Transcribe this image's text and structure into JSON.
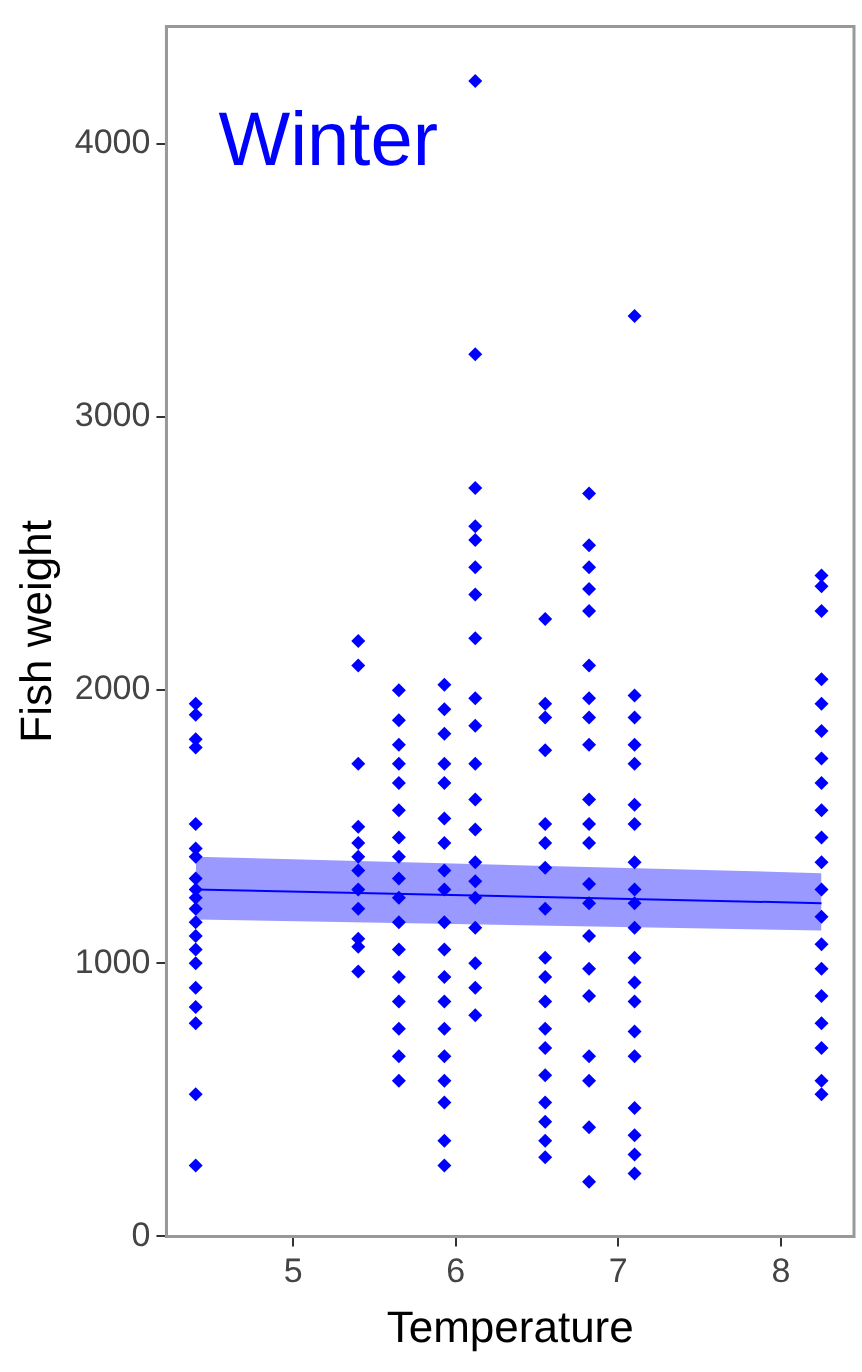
{
  "chart_data": {
    "type": "scatter",
    "xlabel": "Temperature",
    "ylabel": "Fish weight",
    "annotations": [
      "Winter"
    ],
    "xlim": [
      4.22,
      8.45
    ],
    "xticks": [
      5,
      6,
      7,
      8
    ],
    "ylim": [
      0,
      4430
    ],
    "yticks": [
      0,
      1000,
      2000,
      3000,
      4000
    ],
    "grid": false,
    "legend": false,
    "marker": "diamond",
    "series": [
      {
        "color": "#0000ff",
        "x": [
          4.4,
          4.4,
          4.4,
          4.4,
          4.4,
          4.4,
          4.4,
          4.4,
          4.4,
          4.4,
          4.4,
          4.4,
          4.4,
          4.4,
          4.4,
          4.4,
          4.4,
          4.4,
          4.4,
          4.4,
          5.4,
          5.4,
          5.4,
          5.4,
          5.4,
          5.4,
          5.4,
          5.4,
          5.4,
          5.4,
          5.4,
          5.4,
          5.65,
          5.65,
          5.65,
          5.65,
          5.65,
          5.65,
          5.65,
          5.65,
          5.65,
          5.65,
          5.65,
          5.65,
          5.65,
          5.65,
          5.65,
          5.65,
          5.65,
          5.93,
          5.93,
          5.93,
          5.93,
          5.93,
          5.93,
          5.93,
          5.93,
          5.93,
          5.93,
          5.93,
          5.93,
          5.93,
          5.93,
          5.93,
          5.93,
          5.93,
          5.93,
          5.93,
          6.12,
          6.12,
          6.12,
          6.12,
          6.12,
          6.12,
          6.12,
          6.12,
          6.12,
          6.12,
          6.12,
          6.12,
          6.12,
          6.12,
          6.12,
          6.12,
          6.12,
          6.12,
          6.12,
          6.12,
          6.55,
          6.55,
          6.55,
          6.55,
          6.55,
          6.55,
          6.55,
          6.55,
          6.55,
          6.55,
          6.55,
          6.55,
          6.55,
          6.55,
          6.55,
          6.55,
          6.55,
          6.55,
          6.82,
          6.82,
          6.82,
          6.82,
          6.82,
          6.82,
          6.82,
          6.82,
          6.82,
          6.82,
          6.82,
          6.82,
          6.82,
          6.82,
          6.82,
          6.82,
          6.82,
          6.82,
          6.82,
          6.82,
          6.82,
          7.1,
          7.1,
          7.1,
          7.1,
          7.1,
          7.1,
          7.1,
          7.1,
          7.1,
          7.1,
          7.1,
          7.1,
          7.1,
          7.1,
          7.1,
          7.1,
          7.1,
          7.1,
          7.1,
          7.1,
          8.25,
          8.25,
          8.25,
          8.25,
          8.25,
          8.25,
          8.25,
          8.25,
          8.25,
          8.25,
          8.25,
          8.25,
          8.25,
          8.25,
          8.25,
          8.25,
          8.25,
          8.25,
          8.25,
          8.25
        ],
        "values": [
          1950,
          1910,
          1820,
          1790,
          1510,
          1420,
          1390,
          1310,
          1270,
          1240,
          1200,
          1150,
          1100,
          1050,
          1000,
          910,
          840,
          780,
          520,
          260,
          2180,
          2090,
          1730,
          1500,
          1440,
          1390,
          1340,
          1270,
          1200,
          1090,
          1060,
          970,
          2000,
          1890,
          1800,
          1730,
          1660,
          1560,
          1460,
          1390,
          1310,
          1240,
          1150,
          1050,
          950,
          860,
          760,
          660,
          570,
          2020,
          1930,
          1840,
          1730,
          1660,
          1530,
          1440,
          1340,
          1270,
          1150,
          1050,
          950,
          860,
          760,
          660,
          570,
          490,
          350,
          260,
          4230,
          3230,
          2740,
          2600,
          2550,
          2450,
          2350,
          2190,
          1970,
          1870,
          1730,
          1600,
          1490,
          1370,
          1240,
          1130,
          1000,
          910,
          810,
          1300,
          2260,
          1950,
          1900,
          1780,
          1510,
          1440,
          1350,
          1200,
          1020,
          950,
          860,
          760,
          690,
          590,
          490,
          420,
          350,
          290,
          2720,
          2530,
          2450,
          2370,
          2290,
          2090,
          1970,
          1900,
          1800,
          1600,
          1510,
          1440,
          1290,
          1220,
          1100,
          980,
          880,
          660,
          570,
          400,
          200,
          3370,
          1980,
          1900,
          1800,
          1730,
          1580,
          1510,
          1370,
          1270,
          1220,
          1130,
          1020,
          930,
          860,
          750,
          660,
          470,
          370,
          300,
          230,
          2420,
          2380,
          2290,
          2040,
          1950,
          1850,
          1750,
          1660,
          1560,
          1460,
          1370,
          1270,
          1170,
          1070,
          980,
          880,
          780,
          690,
          570,
          520
        ]
      },
      {
        "type": "line",
        "marker": "none",
        "color": "#0000ff",
        "x": [
          4.4,
          8.25
        ],
        "values": [
          1270,
          1220
        ],
        "lower": [
          1160,
          1120
        ],
        "upper": [
          1390,
          1330
        ]
      }
    ]
  }
}
